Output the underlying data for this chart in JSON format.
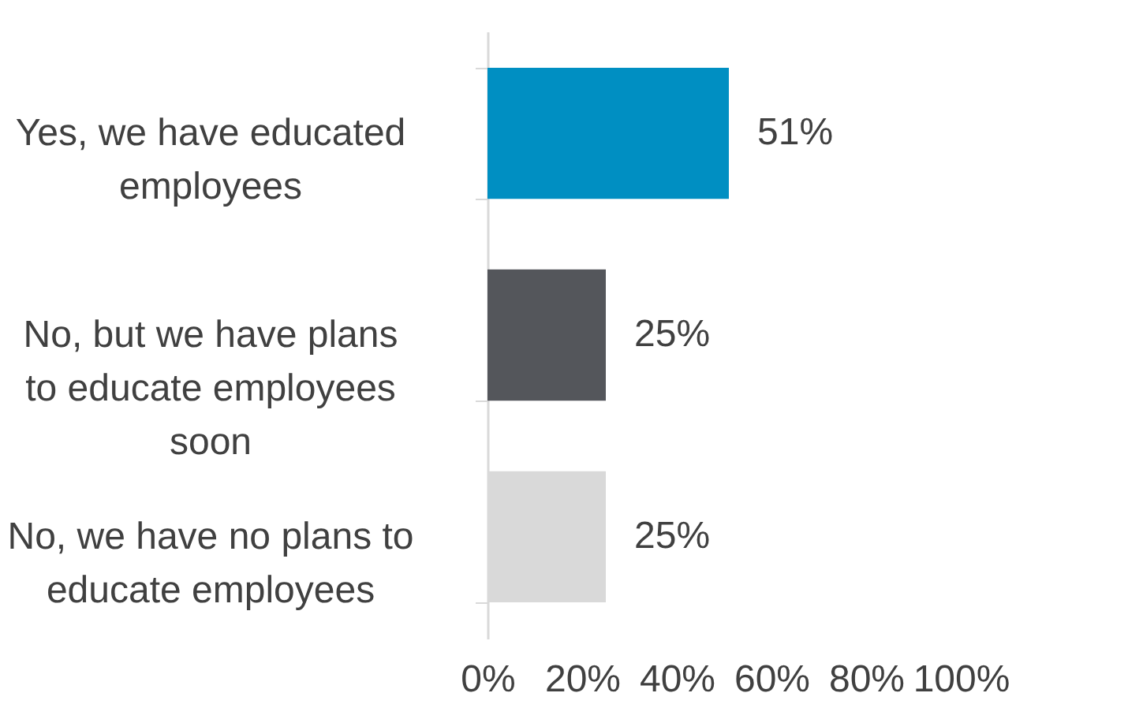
{
  "chart_data": {
    "type": "bar",
    "orientation": "horizontal",
    "categories": [
      "Yes, we have educated employees",
      "No, but we have plans to educate employees soon",
      "No, we have no plans to educate employees"
    ],
    "values": [
      51,
      25,
      25
    ],
    "colors": [
      "#008fc2",
      "#54565b",
      "#d9d9d9"
    ],
    "value_labels": [
      "51%",
      "25%",
      "25%"
    ],
    "xlim": [
      0,
      100
    ],
    "xticks": [
      {
        "value": 0,
        "label": "0%"
      },
      {
        "value": 20,
        "label": "20%"
      },
      {
        "value": 40,
        "label": "40%"
      },
      {
        "value": 60,
        "label": "60%"
      },
      {
        "value": 80,
        "label": "80%"
      },
      {
        "value": 100,
        "label": "100%"
      }
    ],
    "grid": false,
    "legend": false
  }
}
